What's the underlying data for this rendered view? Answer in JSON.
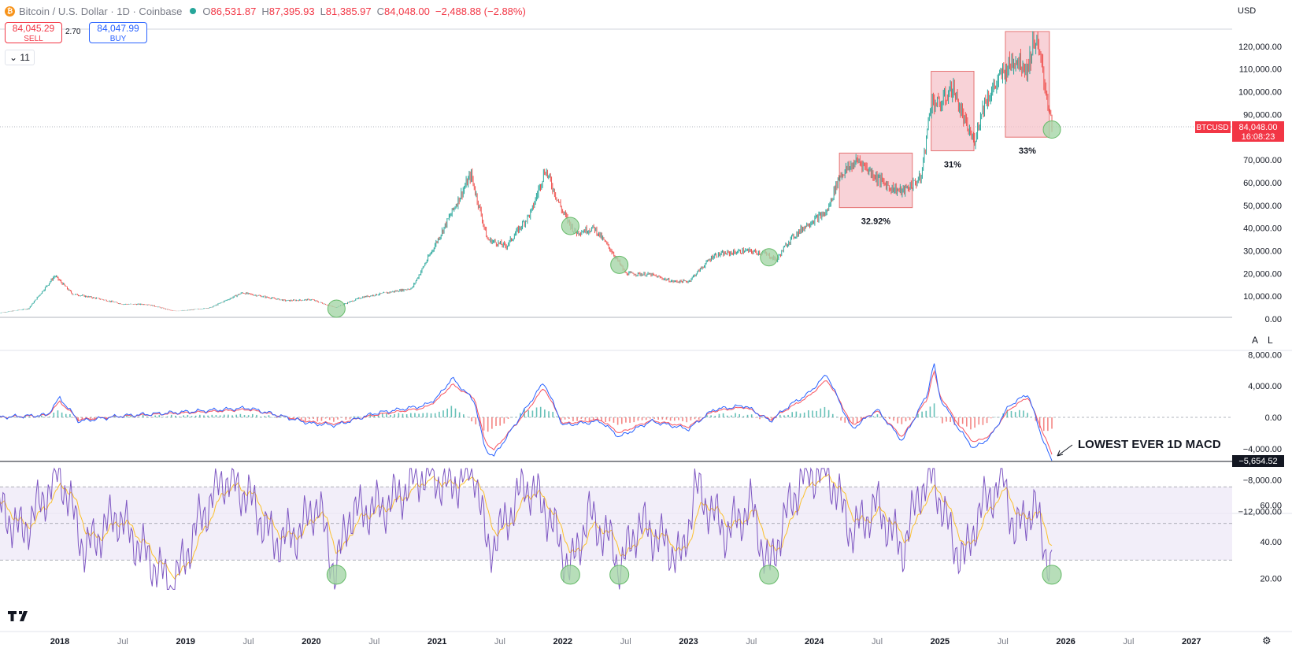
{
  "header": {
    "symbol_title": "Bitcoin / U.S. Dollar · 1D · Coinbase",
    "open_label": "O",
    "open": "86,531.87",
    "high_label": "H",
    "high": "87,395.93",
    "low_label": "L",
    "low": "81,385.97",
    "close_label": "C",
    "close": "84,048.00",
    "change": "−2,488.88 (−2.88%)"
  },
  "trade": {
    "sell_price": "84,045.29",
    "sell_label": "SELL",
    "spread": "2.70",
    "buy_price": "84,047.99",
    "buy_label": "BUY"
  },
  "indicators_toggle": "11",
  "currency_button": "USD",
  "axis_buttons": {
    "auto": "A",
    "log": "L"
  },
  "price_label": {
    "symbol": "BTCUSD",
    "price": "84,048.00",
    "countdown": "16:08:23"
  },
  "macd_label": "−5,654.52",
  "annotations": {
    "box_pcts": [
      "32.92%",
      "31%",
      "33%"
    ],
    "macd_note": "LOWEST EVER 1D MACD"
  },
  "colors": {
    "up": "#26a69a",
    "down": "#ef5350",
    "macd": "#2962ff",
    "signal": "#f7525f",
    "rsi": "#7e57c2",
    "rsi_ma": "#fbc02d",
    "box_fill": "#f6c3c9",
    "circle_fill": "#a5d6a7"
  },
  "chart_data": [
    {
      "type": "candlestick",
      "title": "Bitcoin / U.S. Dollar · 1D · Coinbase",
      "ylim": [
        0,
        126000
      ],
      "y_ticks": [
        "0.00",
        "10,000.00",
        "20,000.00",
        "30,000.00",
        "40,000.00",
        "50,000.00",
        "60,000.00",
        "70,000.00",
        "90,000.00",
        "100,000.00",
        "110,000.00",
        "120,000.00"
      ],
      "x_ticks": [
        "2018",
        "Jul",
        "2019",
        "Jul",
        "2020",
        "Jul",
        "2021",
        "Jul",
        "2022",
        "Jul",
        "2023",
        "Jul",
        "2024",
        "Jul",
        "2025",
        "Jul",
        "2026",
        "Jul",
        "2027"
      ],
      "x": [
        2017.5,
        2017.75,
        2017.96,
        2018.1,
        2018.3,
        2018.5,
        2018.7,
        2018.9,
        2019.0,
        2019.2,
        2019.45,
        2019.6,
        2019.8,
        2020.0,
        2020.19,
        2020.4,
        2020.6,
        2020.8,
        2020.95,
        2021.1,
        2021.27,
        2021.4,
        2021.55,
        2021.75,
        2021.86,
        2022.0,
        2022.1,
        2022.25,
        2022.4,
        2022.5,
        2022.7,
        2022.87,
        2023.0,
        2023.2,
        2023.45,
        2023.6,
        2023.7,
        2023.8,
        2023.95,
        2024.1,
        2024.2,
        2024.35,
        2024.5,
        2024.6,
        2024.7,
        2024.85,
        2024.93,
        2025.0,
        2025.1,
        2025.2,
        2025.27,
        2025.35,
        2025.5,
        2025.6,
        2025.7,
        2025.75,
        2025.8,
        2025.87,
        2025.89
      ],
      "values": [
        2500,
        4500,
        19000,
        11000,
        9000,
        6500,
        6400,
        3500,
        3700,
        5000,
        11500,
        10000,
        8000,
        8500,
        5000,
        9500,
        11500,
        13500,
        29000,
        45000,
        63500,
        35000,
        32000,
        47000,
        66000,
        47000,
        38000,
        40000,
        29000,
        20000,
        19500,
        16500,
        16500,
        28000,
        30000,
        29000,
        26000,
        34500,
        42000,
        47000,
        63000,
        70000,
        62000,
        58000,
        56000,
        62000,
        96000,
        94000,
        102000,
        86000,
        78000,
        95000,
        108000,
        115000,
        110000,
        124000,
        114000,
        92000,
        84048
      ],
      "boxes": [
        {
          "x": [
            2024.2,
            2024.78
          ],
          "y": [
            49000,
            73000
          ],
          "label": "32.92%"
        },
        {
          "x": [
            2024.93,
            2025.27
          ],
          "y": [
            74000,
            109000
          ],
          "label": "31%"
        },
        {
          "x": [
            2025.52,
            2025.87
          ],
          "y": [
            80000,
            126500
          ],
          "label": "33%"
        }
      ],
      "circles_x": [
        2020.2,
        2022.06,
        2022.45,
        2023.64,
        2025.89
      ],
      "current_price": 84048.0
    },
    {
      "type": "line",
      "title": "MACD",
      "ylim": [
        -12000,
        8000
      ],
      "y_ticks": [
        "8,000.00",
        "4,000.00",
        "0.00",
        "−4,000.00",
        "−8,000.00",
        "−12,000.00"
      ],
      "x": [
        2017.5,
        2017.9,
        2018.0,
        2018.15,
        2018.5,
        2019.5,
        2020.0,
        2020.2,
        2020.5,
        2020.9,
        2021.0,
        2021.12,
        2021.3,
        2021.38,
        2021.45,
        2021.7,
        2021.85,
        2022.0,
        2022.3,
        2022.45,
        2022.7,
        2023.0,
        2023.2,
        2023.45,
        2023.65,
        2023.8,
        2023.95,
        2024.1,
        2024.2,
        2024.3,
        2024.5,
        2024.7,
        2024.9,
        2024.95,
        2025.0,
        2025.15,
        2025.27,
        2025.4,
        2025.55,
        2025.7,
        2025.8,
        2025.86,
        2025.89
      ],
      "series": [
        {
          "name": "MACD",
          "values": [
            0,
            300,
            2500,
            -500,
            200,
            1200,
            -800,
            -1000,
            500,
            1500,
            2500,
            5000,
            2000,
            -4000,
            -5000,
            1000,
            4500,
            -1000,
            -500,
            -2500,
            -500,
            -1500,
            1000,
            1500,
            -500,
            1500,
            3000,
            5500,
            2000,
            -1500,
            1000,
            -3000,
            3000,
            7000,
            2500,
            -1500,
            -4000,
            -2500,
            1500,
            3000,
            -2000,
            -4500,
            -5654.52
          ]
        },
        {
          "name": "Signal",
          "values": [
            0,
            250,
            2000,
            -300,
            150,
            1000,
            -600,
            -800,
            300,
            1200,
            2200,
            4200,
            2400,
            -3000,
            -4200,
            500,
            3800,
            -800,
            -300,
            -2000,
            -400,
            -1200,
            800,
            1300,
            -300,
            1200,
            2600,
            4800,
            2200,
            -1000,
            800,
            -2500,
            2400,
            6000,
            2800,
            -1000,
            -3200,
            -2300,
            1000,
            2600,
            -1200,
            -3500,
            -4800
          ]
        }
      ],
      "annotation": "LOWEST EVER 1D MACD",
      "last_value": -5654.52
    },
    {
      "type": "line",
      "title": "RSI",
      "ylim": [
        10,
        80
      ],
      "y_ticks": [
        "60.00",
        "40.00",
        "20.00"
      ],
      "bands": [
        30,
        50,
        70
      ],
      "x": [
        2017.5,
        2017.7,
        2018.0,
        2018.2,
        2018.45,
        2018.6,
        2018.9,
        2019.1,
        2019.3,
        2019.5,
        2019.7,
        2019.9,
        2020.05,
        2020.19,
        2020.3,
        2020.6,
        2020.9,
        2021.1,
        2021.3,
        2021.4,
        2021.5,
        2021.7,
        2021.85,
        2022.0,
        2022.06,
        2022.2,
        2022.4,
        2022.45,
        2022.6,
        2022.8,
        2022.95,
        2023.05,
        2023.3,
        2023.5,
        2023.64,
        2023.75,
        2023.9,
        2024.1,
        2024.3,
        2024.5,
        2024.7,
        2024.85,
        2024.95,
        2025.1,
        2025.2,
        2025.3,
        2025.5,
        2025.6,
        2025.75,
        2025.85,
        2025.89
      ],
      "series": [
        {
          "name": "RSI",
          "values": [
            60,
            45,
            78,
            35,
            55,
            40,
            15,
            50,
            75,
            65,
            40,
            45,
            62,
            22,
            55,
            60,
            78,
            70,
            80,
            35,
            45,
            72,
            60,
            35,
            24,
            55,
            38,
            24,
            50,
            40,
            30,
            70,
            45,
            60,
            24,
            50,
            75,
            80,
            45,
            60,
            35,
            70,
            75,
            40,
            30,
            55,
            75,
            45,
            60,
            32,
            28
          ]
        }
      ]
    }
  ]
}
